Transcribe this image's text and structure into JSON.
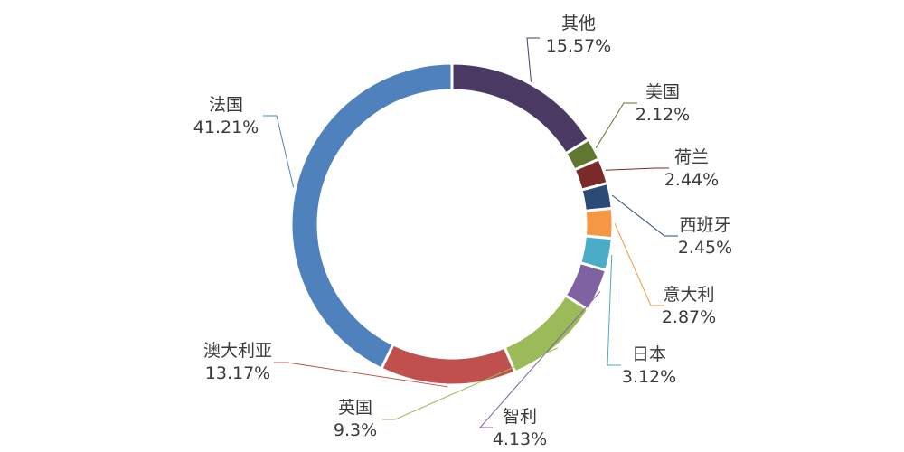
{
  "chart_data": {
    "type": "pie",
    "variant": "donut",
    "slices": [
      {
        "name": "其他",
        "value": 15.57,
        "label": "15.57%",
        "color": "#4a3a63"
      },
      {
        "name": "美国",
        "value": 2.12,
        "label": "2.12%",
        "color": "#5f772e"
      },
      {
        "name": "荷兰",
        "value": 2.44,
        "label": "2.44%",
        "color": "#7a2a28"
      },
      {
        "name": "西班牙",
        "value": 2.45,
        "label": "2.45%",
        "color": "#2b4a75"
      },
      {
        "name": "意大利",
        "value": 2.87,
        "label": "2.87%",
        "color": "#f59745"
      },
      {
        "name": "日本",
        "value": 3.12,
        "label": "3.12%",
        "color": "#4aacc6"
      },
      {
        "name": "智利",
        "value": 4.13,
        "label": "4.13%",
        "color": "#7f62a1"
      },
      {
        "name": "英国",
        "value": 9.3,
        "label": "9.3%",
        "color": "#9bba58"
      },
      {
        "name": "澳大利亚",
        "value": 13.17,
        "label": "13.17%",
        "color": "#c0504d"
      },
      {
        "name": "法国",
        "value": 41.21,
        "label": "41.21%",
        "color": "#4f81bd"
      }
    ],
    "legend": "none"
  }
}
